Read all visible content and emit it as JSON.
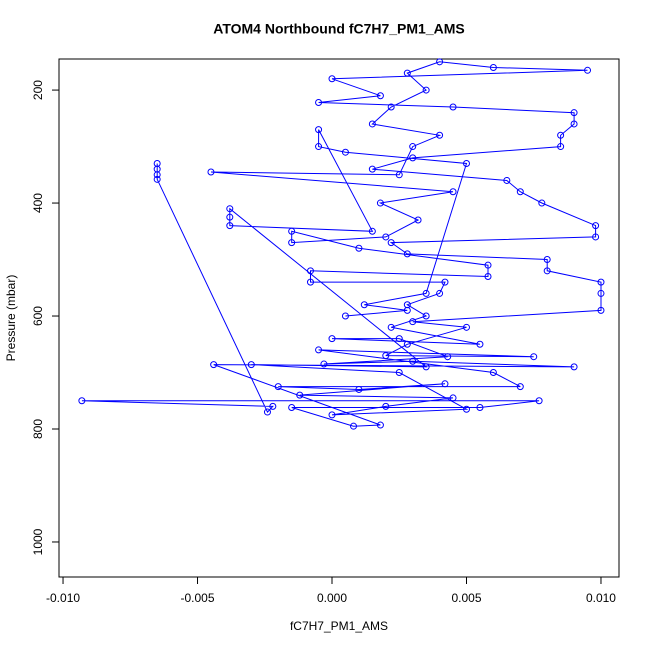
{
  "chart_data": {
    "type": "scatter",
    "title": "ATOM4 Northbound fC7H7_PM1_AMS",
    "x_label": "fC7H7_PM1_AMS",
    "y_label": "Pressure (mbar)",
    "color": "#0000ff",
    "xlim": [
      -0.01015,
      0.01067
    ],
    "ylim": [
      1062,
      145
    ],
    "xticks": [
      {
        "value": -0.01,
        "label": "-0.010"
      },
      {
        "value": -0.005,
        "label": "-0.005"
      },
      {
        "value": 0,
        "label": "0.000"
      },
      {
        "value": 0.005,
        "label": "0.005"
      },
      {
        "value": 0.01,
        "label": "0.010"
      }
    ],
    "yticks": [
      200,
      400,
      600,
      800,
      1000
    ],
    "x": [
      -0.0065,
      -0.0065,
      -0.0065,
      -0.0065,
      -0.0024,
      -0.0022,
      -0.0093,
      0.0077,
      0.0055,
      -0.0015,
      0.0008,
      0.0018,
      -0.0044,
      0.009,
      0.003,
      -0.0003,
      0.0043,
      0.0025,
      0,
      0.0055,
      0.0022,
      0.0035,
      0.0028,
      0.004,
      0.0042,
      -0.0008,
      -0.0008,
      0.0058,
      0.0058,
      0.001,
      -0.0015,
      -0.0015,
      0.002,
      0.0032,
      0.0018,
      0.0045,
      -0.0045,
      0.0025,
      0.003,
      0.004,
      0.0015,
      0.0022,
      0.0035,
      0.0028,
      0.004,
      0.006,
      0.0095,
      0,
      0.0018,
      -0.0005,
      0.0045,
      0.009,
      0.009,
      0.0085,
      0.0085,
      0.003,
      0.0015,
      0.0065,
      0.007,
      0.0078,
      0.0098,
      0.0098,
      0.0022,
      0.0028,
      0.008,
      0.008,
      0.01,
      0.01,
      0.01,
      0.003,
      0.005,
      0.0028,
      0.002,
      0.0075,
      -0.0005,
      0.006,
      0.007,
      -0.002,
      0.001,
      0.0042,
      -0.0012,
      0.0045,
      0.002,
      0,
      0.005,
      0.0025,
      -0.003,
      0.0035,
      -0.0038,
      -0.0038,
      -0.0038,
      0.0015,
      -0.0005,
      -0.0005,
      0.0005,
      0.005,
      0.0035,
      0.0012,
      0.0028,
      0.0005
    ],
    "values": [
      330,
      340,
      350,
      358,
      770,
      760,
      750,
      750,
      762,
      762,
      795,
      793,
      686,
      690,
      680,
      685,
      672,
      640,
      640,
      650,
      620,
      600,
      580,
      560,
      540,
      540,
      520,
      530,
      510,
      480,
      450,
      470,
      460,
      430,
      400,
      380,
      345,
      350,
      300,
      280,
      260,
      230,
      200,
      170,
      150,
      160,
      165,
      180,
      210,
      222,
      230,
      240,
      260,
      280,
      300,
      320,
      340,
      360,
      380,
      400,
      440,
      460,
      470,
      490,
      500,
      520,
      540,
      560,
      590,
      610,
      620,
      650,
      670,
      672,
      660,
      700,
      725,
      725,
      730,
      720,
      740,
      745,
      760,
      775,
      765,
      700,
      686,
      690,
      410,
      425,
      440,
      450,
      270,
      300,
      310,
      330,
      560,
      580,
      590,
      600
    ]
  }
}
